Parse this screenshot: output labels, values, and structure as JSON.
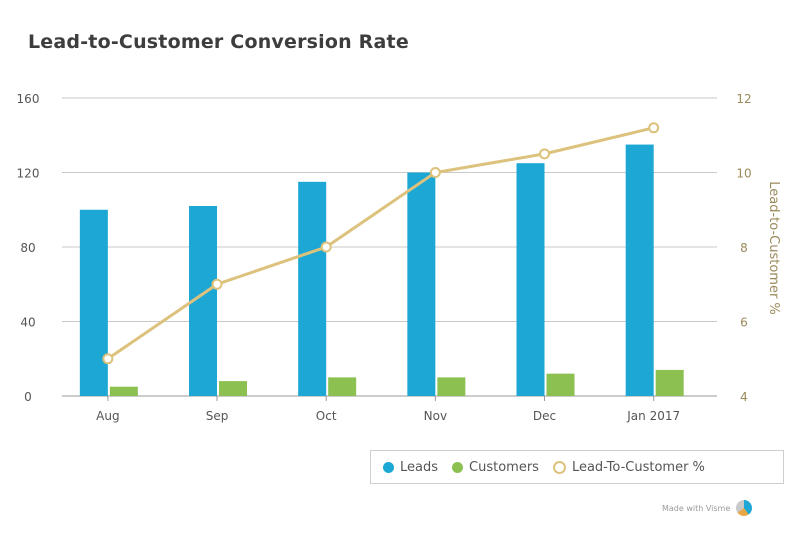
{
  "title": "Lead-to-Customer Conversion Rate",
  "chart_data": {
    "type": "bar",
    "title": "Lead-to-Customer Conversion Rate",
    "categories": [
      "Aug",
      "Sep",
      "Oct",
      "Nov",
      "Dec",
      "Jan 2017"
    ],
    "series": [
      {
        "name": "Leads",
        "type": "bar",
        "axis": "left",
        "color": "#1ca7d4",
        "values": [
          100,
          102,
          115,
          120,
          125,
          135
        ]
      },
      {
        "name": "Customers",
        "type": "bar",
        "axis": "left",
        "color": "#8cc152",
        "values": [
          5,
          8,
          10,
          10,
          12,
          14
        ]
      },
      {
        "name": "Lead-To-Customer %",
        "type": "line",
        "axis": "right",
        "color": "#dcc27c",
        "values": [
          5,
          7,
          8,
          10,
          10.5,
          11.2
        ]
      }
    ],
    "y_left": {
      "label": "",
      "min": 0,
      "max": 160,
      "ticks": [
        "0",
        "40",
        "80",
        "120",
        "160"
      ]
    },
    "y_right": {
      "label": "Lead-to-Customer %",
      "min": 4,
      "max": 12,
      "ticks": [
        "4",
        "6",
        "8",
        "10",
        "12"
      ]
    },
    "grid": true,
    "legend_position": "bottom-right"
  },
  "legend": {
    "items": [
      {
        "label": "Leads",
        "color": "#1ca7d4"
      },
      {
        "label": "Customers",
        "color": "#8cc152"
      },
      {
        "label": "Lead-To-Customer %",
        "color": "#dcc27c"
      }
    ]
  },
  "credit": "Made with Visme"
}
